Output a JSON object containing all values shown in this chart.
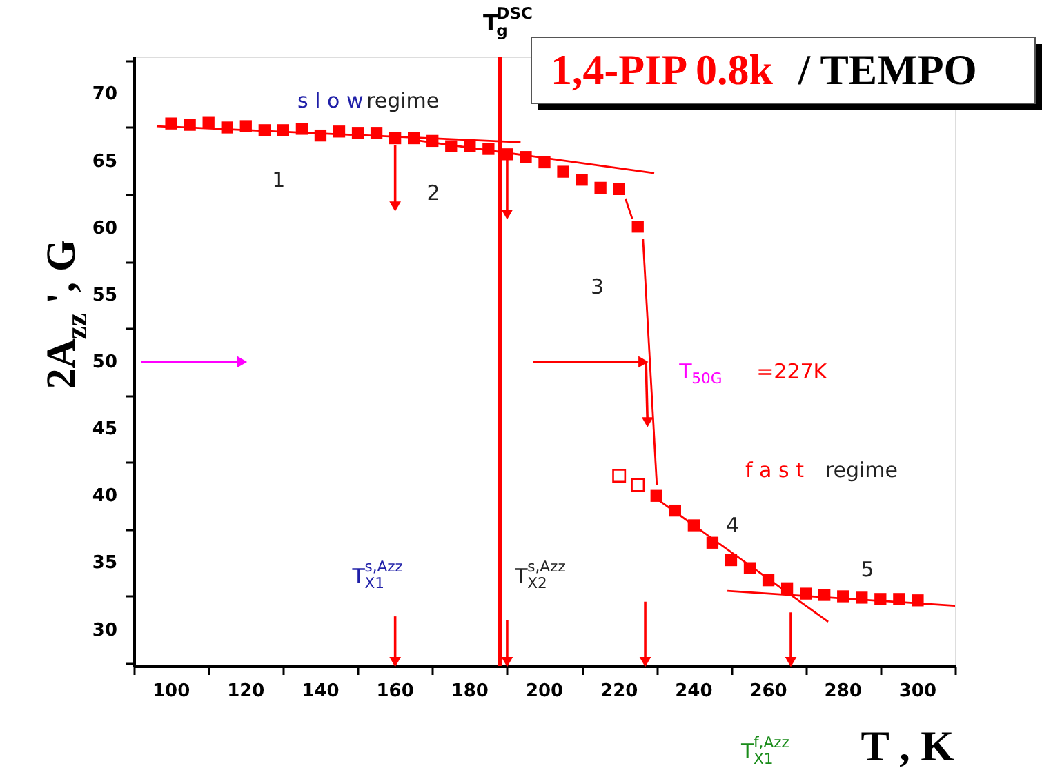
{
  "chart_data": {
    "type": "scatter",
    "title": "1,4-PIP 0.8k / TEMPO",
    "xlabel": "T , K",
    "ylabel": "2A$_{zz}$', G",
    "xlim": [
      90,
      310
    ],
    "ylim": [
      27.3,
      72.8
    ],
    "xticks": [
      {
        "value": 90,
        "label": null
      },
      100,
      {
        "value": 110,
        "label": null
      },
      120,
      {
        "value": 130,
        "label": null
      },
      140,
      {
        "value": 150,
        "label": null
      },
      160,
      {
        "value": 170,
        "label": null
      },
      180,
      {
        "value": 190,
        "label": null
      },
      200,
      {
        "value": 210,
        "label": null
      },
      220,
      {
        "value": 230,
        "label": null
      },
      240,
      {
        "value": 250,
        "label": null
      },
      260,
      {
        "value": 270,
        "label": null
      },
      280,
      {
        "value": 290,
        "label": null
      },
      300,
      {
        "value": 310,
        "label": null
      }
    ],
    "yticks": [
      {
        "value": 27.5,
        "label": null
      },
      30,
      {
        "value": 32.5,
        "label": null
      },
      35,
      {
        "value": 37.5,
        "label": null
      },
      40,
      {
        "value": 42.5,
        "label": null
      },
      45,
      {
        "value": 47.5,
        "label": null
      },
      50,
      {
        "value": 52.5,
        "label": null
      },
      55,
      {
        "value": 57.5,
        "label": null
      },
      60,
      {
        "value": 62.5,
        "label": null
      },
      65,
      {
        "value": 67.5,
        "label": null
      },
      70,
      {
        "value": 72.5,
        "label": null
      }
    ],
    "grid": false,
    "ref_lines": [
      {
        "axis": "x",
        "value": 188,
        "label": "T$_{g}$$^{DSC}$",
        "color": "#ff0000"
      }
    ],
    "annotations": [
      "s l o w",
      "regime",
      "1",
      "2",
      "3",
      "4",
      "5",
      "f a s t",
      "regime",
      "T$_{50G}$",
      "=227K",
      "T$_{X1}$$^{s,Azz}$",
      "T$_{X2}$$^{s,Azz}$",
      "T$_{X1}$$^{f,Azz}$"
    ],
    "series": [
      {
        "marker": "square",
        "color": "#ff0000",
        "x": [
          100,
          105,
          110,
          115,
          120,
          125,
          130,
          135,
          140,
          145,
          150,
          155,
          160,
          165,
          170,
          175,
          180,
          185,
          190,
          195,
          200,
          205,
          210,
          215,
          220,
          225,
          230,
          235,
          240,
          245,
          250,
          255,
          260,
          265,
          270,
          275,
          280,
          285,
          290,
          295,
          300
        ],
        "values": [
          67.8,
          67.7,
          67.9,
          67.5,
          67.6,
          67.3,
          67.3,
          67.4,
          66.9,
          67.2,
          67.1,
          67.1,
          66.7,
          66.7,
          66.5,
          66.1,
          66.1,
          65.9,
          65.5,
          65.3,
          64.9,
          64.2,
          63.6,
          63.0,
          62.9,
          60.1,
          40.0,
          38.9,
          37.8,
          36.5,
          35.2,
          34.6,
          33.7,
          33.1,
          32.7,
          32.6,
          32.5,
          32.4,
          32.3,
          32.3,
          32.2
        ]
      },
      {
        "marker": "square-open",
        "color": "#ff0000",
        "x": [
          220,
          225
        ],
        "values": [
          41.5,
          40.8
        ]
      },
      {
        "type": "line",
        "marker": "none",
        "color": "#ff0000",
        "x": [
          96.1,
          193.6
        ],
        "values": [
          67.6,
          66.4
        ]
      },
      {
        "type": "line",
        "marker": "none",
        "color": "#ff0000",
        "x": [
          164.1,
          229.4
        ],
        "values": [
          66.6,
          64.1
        ]
      },
      {
        "type": "line",
        "marker": "none",
        "color": "#ff0000",
        "x": [
          221.7,
          223.5
        ],
        "values": [
          62.2,
          60.7
        ]
      },
      {
        "type": "line",
        "marker": "none",
        "color": "#ff0000",
        "x": [
          226.4,
          230.1
        ],
        "values": [
          59.2,
          40.8
        ]
      },
      {
        "type": "line",
        "marker": "none",
        "color": "#ff0000",
        "x": [
          230.5,
          276
        ],
        "values": [
          39.7,
          30.6
        ]
      },
      {
        "type": "line",
        "marker": "none",
        "color": "#ff0000",
        "x": [
          249,
          310
        ],
        "values": [
          32.9,
          31.8
        ]
      },
      {
        "type": "line",
        "marker": "triangle",
        "color": "#ff0000",
        "x": [
          160,
          160
        ],
        "values": [
          66.2,
          61.6
        ]
      },
      {
        "type": "line",
        "marker": "triangle",
        "color": "#ff0000",
        "x": [
          190,
          190
        ],
        "values": [
          65.5,
          61.0
        ]
      },
      {
        "type": "line",
        "marker": "triangle",
        "color": "#ff0000",
        "x": [
          160,
          160
        ],
        "values": [
          31.0,
          27.6
        ]
      },
      {
        "type": "line",
        "marker": "triangle",
        "color": "#ff0000",
        "x": [
          190,
          190
        ],
        "values": [
          30.7,
          27.6
        ]
      },
      {
        "type": "line",
        "marker": "triangle",
        "color": "#ff0000",
        "x": [
          227,
          227
        ],
        "values": [
          32.1,
          27.6
        ]
      },
      {
        "type": "line",
        "marker": "triangle",
        "color": "#ff0000",
        "x": [
          266,
          266
        ],
        "values": [
          31.3,
          27.6
        ]
      },
      {
        "type": "line",
        "marker": "triangle",
        "color": "#ff0000",
        "x": [
          227.2,
          227.6
        ],
        "values": [
          50,
          45.5
        ]
      },
      {
        "type": "line",
        "marker": "triangle",
        "color": "#ff00ff",
        "x": [
          92,
          119
        ],
        "values": [
          50,
          50
        ]
      },
      {
        "type": "line",
        "marker": "triangle",
        "color": "#ff0000",
        "x": [
          196.9,
          226.5
        ],
        "values": [
          50,
          50
        ]
      }
    ]
  }
}
